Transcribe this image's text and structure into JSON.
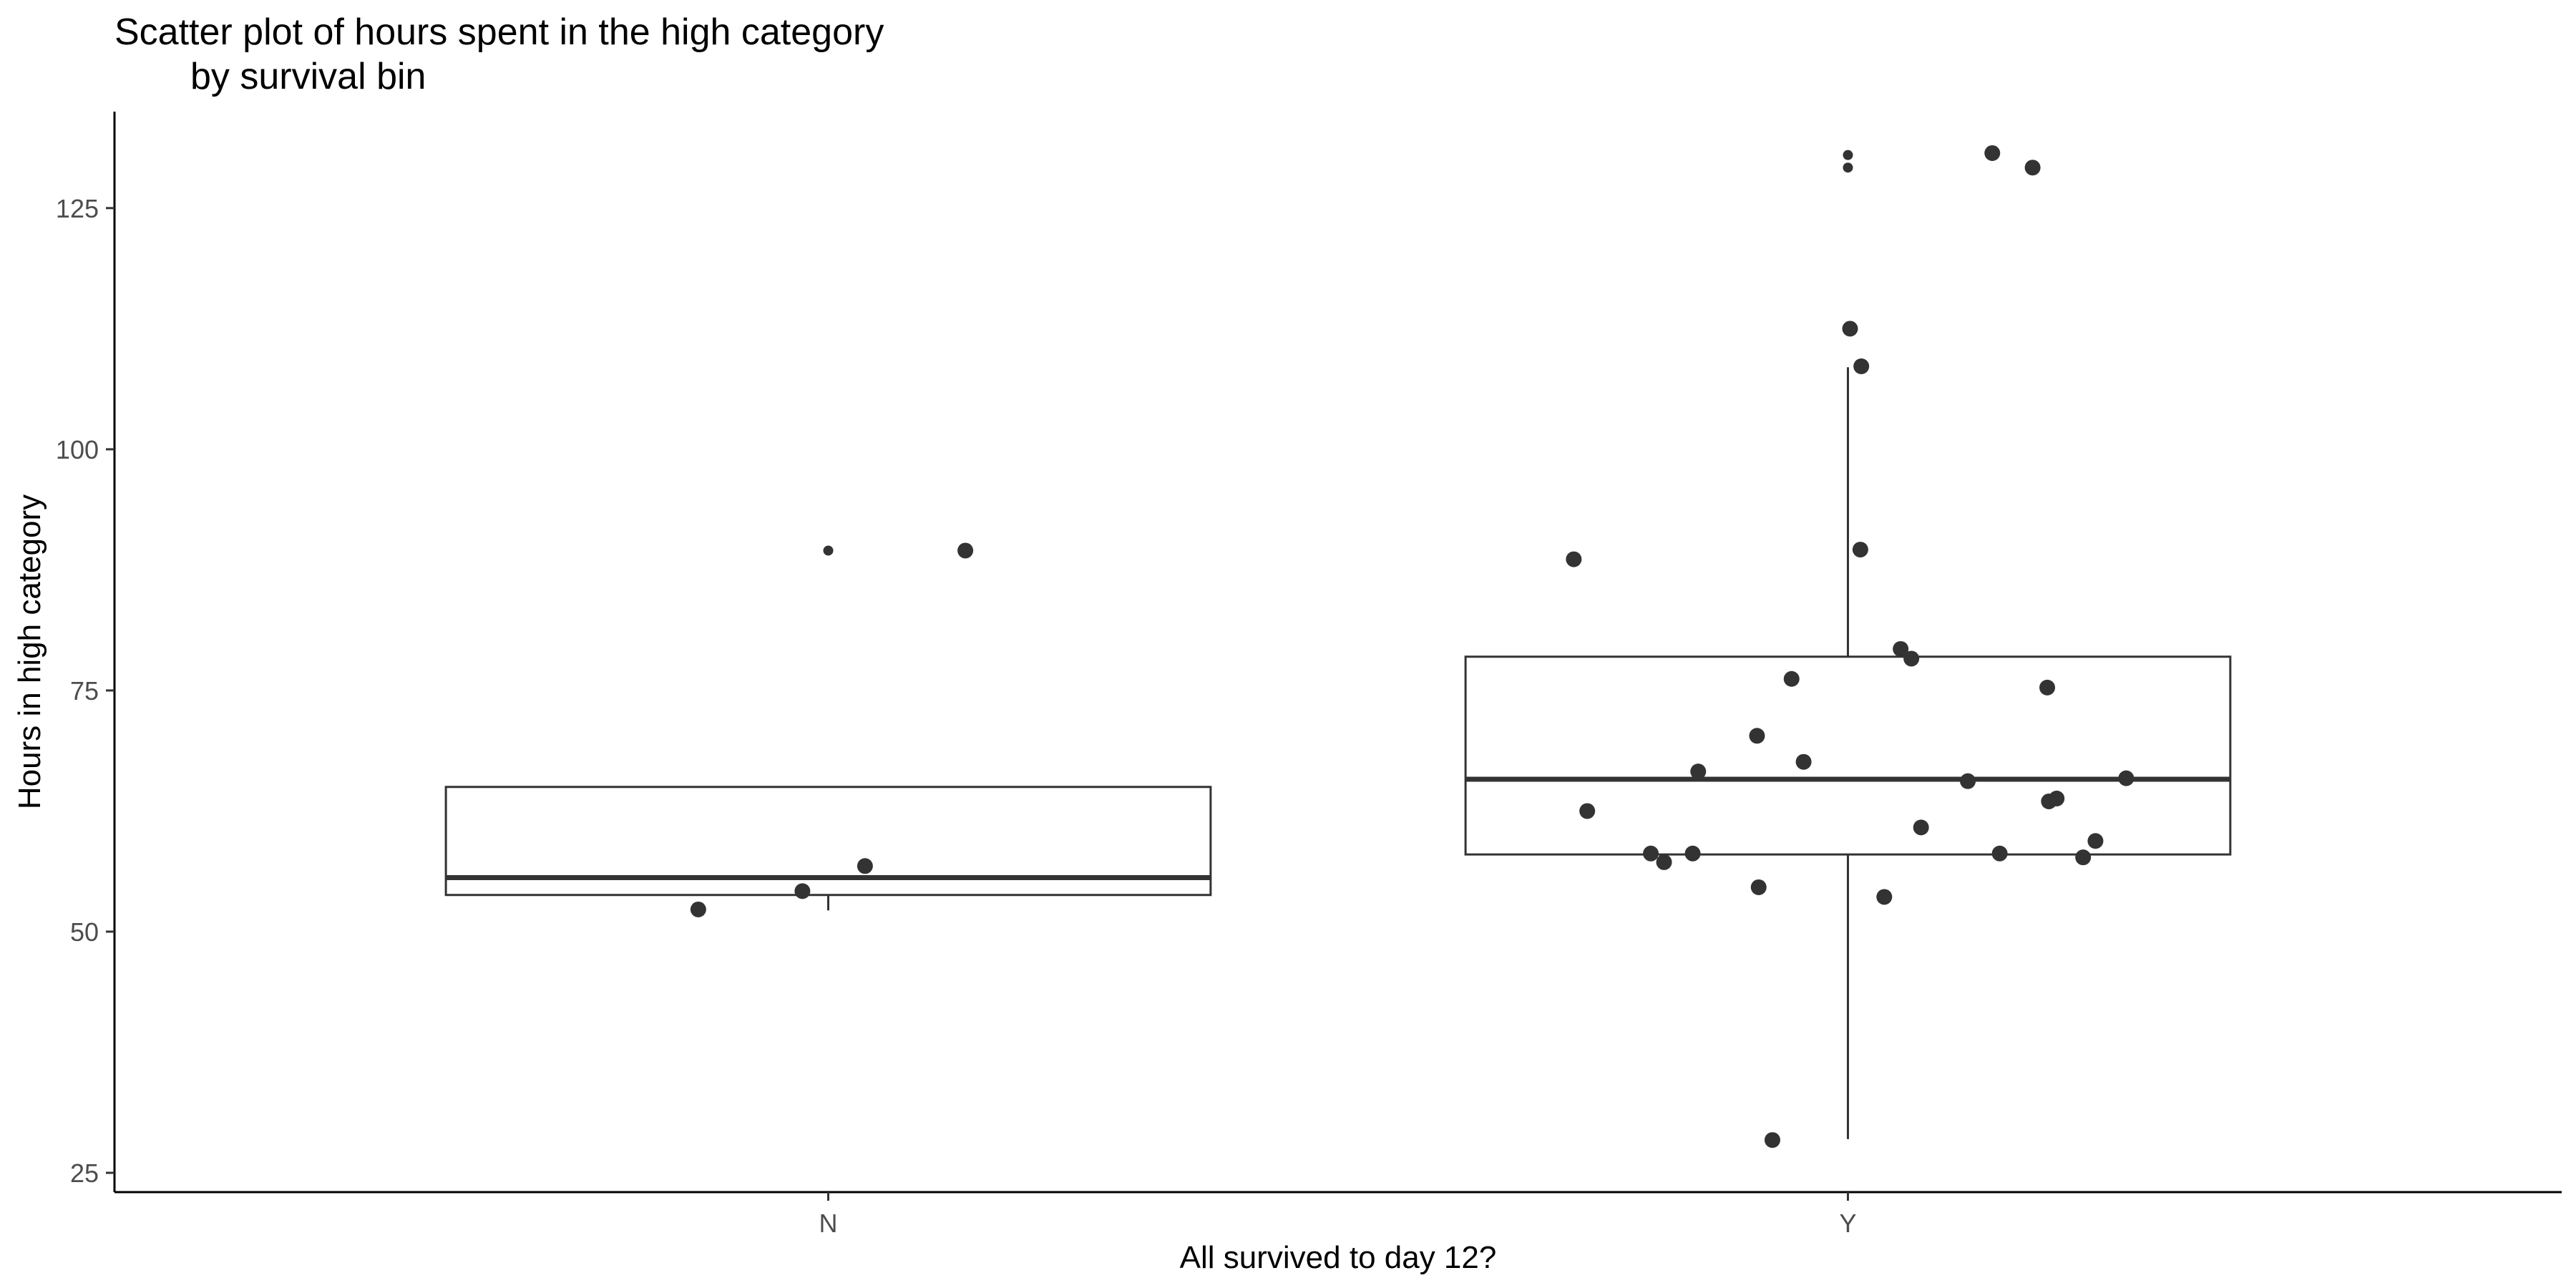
{
  "chart_data": {
    "type": "box+scatter",
    "title_line1": "Scatter plot of hours spent in the high category",
    "title_line2": "by survival bin",
    "xlabel": "All survived to day 12?",
    "ylabel": "Hours in high category",
    "categories": [
      "N",
      "Y"
    ],
    "ylim": [
      23,
      135
    ],
    "yticks": [
      25,
      50,
      75,
      100,
      125
    ],
    "grid": false,
    "boxes": [
      {
        "category": "N",
        "lower_whisker": 52.2,
        "q1": 53.8,
        "median": 55.6,
        "q3": 65.0,
        "upper_whisker": 65.0
      },
      {
        "category": "Y",
        "lower_whisker": 28.5,
        "q1": 58.0,
        "median": 65.8,
        "q3": 78.5,
        "upper_whisker": 108.5
      }
    ],
    "outliers": [
      {
        "category": "N",
        "y": 89.5
      },
      {
        "category": "Y",
        "y": 112.6
      },
      {
        "category": "Y",
        "y": 129.2
      },
      {
        "category": "Y",
        "y": 130.5
      }
    ],
    "points": [
      {
        "category": "N",
        "y": 89.5
      },
      {
        "category": "N",
        "y": 56.8
      },
      {
        "category": "N",
        "y": 54.2
      },
      {
        "category": "N",
        "y": 52.3
      },
      {
        "category": "Y",
        "y": 129.2
      },
      {
        "category": "Y",
        "y": 130.7
      },
      {
        "category": "Y",
        "y": 112.5
      },
      {
        "category": "Y",
        "y": 108.6
      },
      {
        "category": "Y",
        "y": 89.6
      },
      {
        "category": "Y",
        "y": 88.6
      },
      {
        "category": "Y",
        "y": 79.3
      },
      {
        "category": "Y",
        "y": 78.3
      },
      {
        "category": "Y",
        "y": 76.2
      },
      {
        "category": "Y",
        "y": 75.3
      },
      {
        "category": "Y",
        "y": 70.3
      },
      {
        "category": "Y",
        "y": 67.6
      },
      {
        "category": "Y",
        "y": 66.6
      },
      {
        "category": "Y",
        "y": 65.9
      },
      {
        "category": "Y",
        "y": 65.6
      },
      {
        "category": "Y",
        "y": 63.8
      },
      {
        "category": "Y",
        "y": 63.5
      },
      {
        "category": "Y",
        "y": 62.5
      },
      {
        "category": "Y",
        "y": 60.8
      },
      {
        "category": "Y",
        "y": 59.4
      },
      {
        "category": "Y",
        "y": 58.1
      },
      {
        "category": "Y",
        "y": 58.1
      },
      {
        "category": "Y",
        "y": 58.1
      },
      {
        "category": "Y",
        "y": 57.7
      },
      {
        "category": "Y",
        "y": 57.2
      },
      {
        "category": "Y",
        "y": 54.6
      },
      {
        "category": "Y",
        "y": 53.6
      },
      {
        "category": "Y",
        "y": 28.4
      }
    ],
    "colors": {
      "point": "#333333",
      "box_line": "#333333",
      "axis": "#000000",
      "tick_label": "#4d4d4d",
      "background": "#ffffff"
    }
  }
}
